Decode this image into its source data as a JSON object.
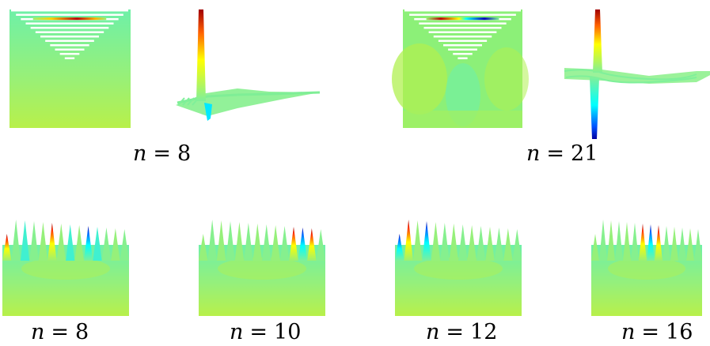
{
  "captions": {
    "top_left": {
      "var": "n",
      "op": "=",
      "num": "8"
    },
    "top_right": {
      "var": "n",
      "op": "=",
      "num": "21"
    },
    "bottom_1": {
      "var": "n",
      "op": "=",
      "num": "8"
    },
    "bottom_2": {
      "var": "n",
      "op": "=",
      "num": "10"
    },
    "bottom_3": {
      "var": "n",
      "op": "=",
      "num": "12"
    },
    "bottom_4": {
      "var": "n",
      "op": "=",
      "num": "16"
    }
  },
  "colors": {
    "field_dark": "#7ff09a",
    "field_light": "#b8f04a",
    "field_mid": "#9cf072",
    "peak_red": "#b30000",
    "peak_yellow": "#ffff00",
    "peak_blue": "#0000c0",
    "peak_cyan": "#00ffff",
    "stripe_white": "#ffffff"
  }
}
